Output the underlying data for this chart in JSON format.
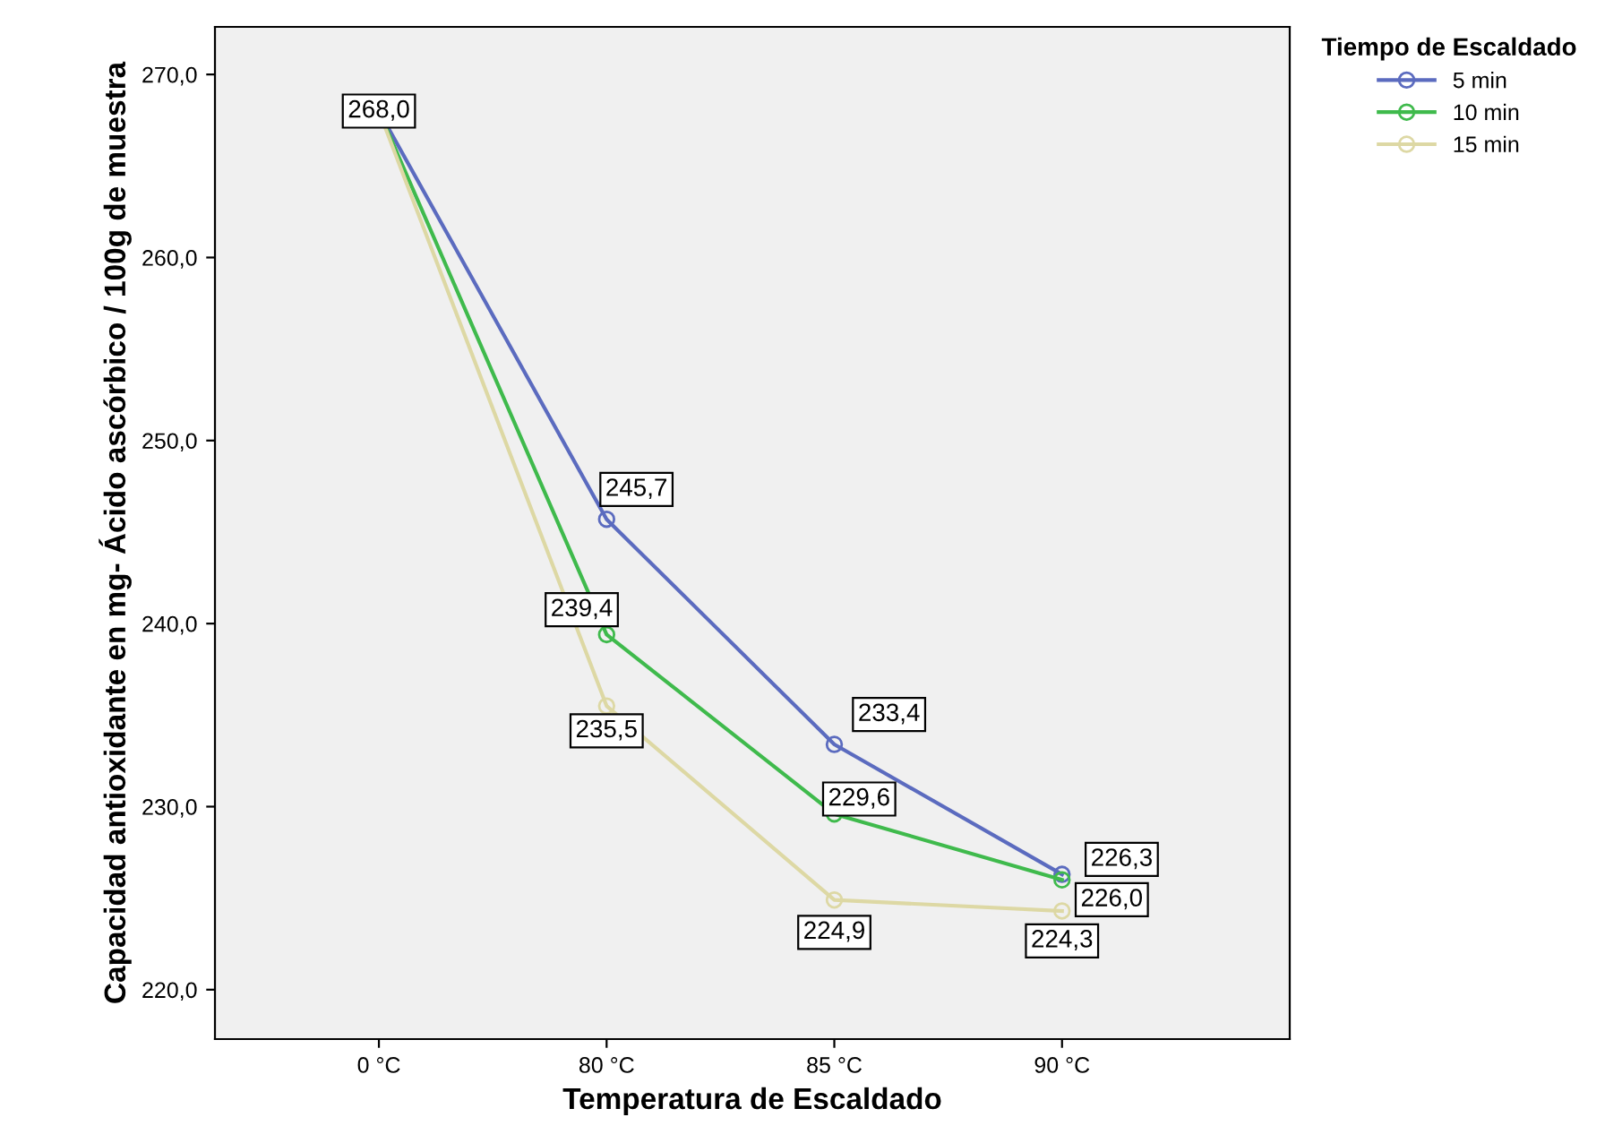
{
  "chart_data": {
    "type": "line",
    "xlabel": "Temperatura de Escaldado",
    "ylabel": "Capacidad antioxidante en mg- Ácido ascórbico / 100g de muestra",
    "legend_title": "Tiempo de Escaldado",
    "categories": [
      "0 °C",
      "80 °C",
      "85 °C",
      "90 °C"
    ],
    "series": [
      {
        "name": "5 min",
        "color": "#5b6bbf",
        "values": [
          268.0,
          245.7,
          233.4,
          226.3
        ],
        "value_labels": [
          "268,0",
          "245,7",
          "233,4",
          "226,3"
        ]
      },
      {
        "name": "10 min",
        "color": "#3fba4c",
        "values": [
          268.0,
          239.4,
          229.6,
          226.0
        ],
        "value_labels": [
          null,
          "239,4",
          "229,6",
          "226,0"
        ]
      },
      {
        "name": "15 min",
        "color": "#ddd8a4",
        "values": [
          268.0,
          235.5,
          224.9,
          224.3
        ],
        "value_labels": [
          null,
          "235,5",
          "224,9",
          "224,3"
        ]
      }
    ],
    "ylim": [
      217.3,
      272.6
    ],
    "yticks": [
      {
        "value": 220,
        "label": "220,0"
      },
      {
        "value": 230,
        "label": "230,0"
      },
      {
        "value": 240,
        "label": "240,0"
      },
      {
        "value": 250,
        "label": "250,0"
      },
      {
        "value": 260,
        "label": "260,0"
      },
      {
        "value": 270,
        "label": "270,0"
      }
    ],
    "marker": "circle",
    "line_style": "solid",
    "legend": "top right",
    "grid": false
  }
}
